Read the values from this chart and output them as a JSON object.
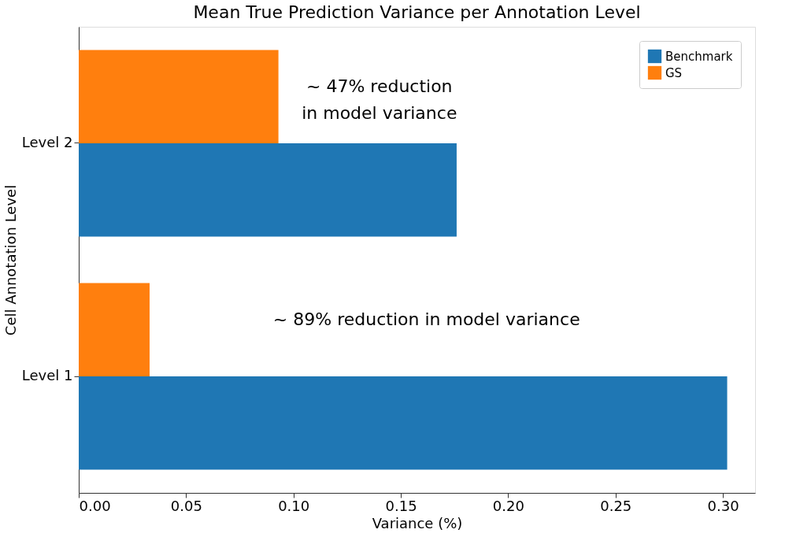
{
  "chart_data": {
    "type": "bar",
    "orientation": "horizontal",
    "title": "Mean True Prediction Variance per Annotation Level",
    "xlabel": "Variance (%)",
    "ylabel": "Cell Annotation Level",
    "categories": [
      "Level 2",
      "Level 1"
    ],
    "series": [
      {
        "name": "Benchmark",
        "color": "#1f77b4",
        "values": [
          0.176,
          0.302
        ]
      },
      {
        "name": "GS",
        "color": "#ff7f0e",
        "values": [
          0.093,
          0.033
        ]
      }
    ],
    "xlim": [
      0,
      0.315
    ],
    "xticks": [
      {
        "value": 0,
        "label": "0.00"
      },
      {
        "value": 0.05,
        "label": "0.05"
      },
      {
        "value": 0.1,
        "label": "0.10"
      },
      {
        "value": 0.15,
        "label": "0.15"
      },
      {
        "value": 0.2,
        "label": "0.20"
      },
      {
        "value": 0.25,
        "label": "0.25"
      },
      {
        "value": 0.3,
        "label": "0.30"
      }
    ],
    "annotations": [
      {
        "text": "~ 47% reduction\nin model variance",
        "x": 0.14,
        "y": "Level 2"
      },
      {
        "text": "~ 89% reduction in model variance",
        "x": 0.162,
        "y": "Level 1"
      }
    ],
    "legend": "top right",
    "grid": false
  }
}
